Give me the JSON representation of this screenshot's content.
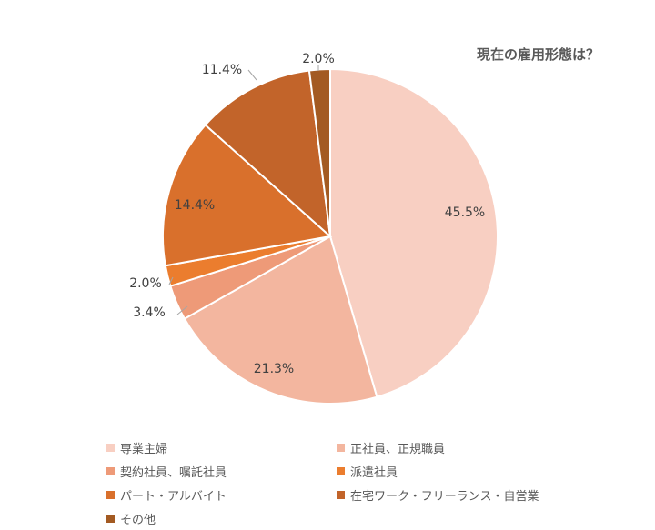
{
  "chart_data": {
    "type": "pie",
    "title": "現在の雇用形態は？",
    "categories": [
      "専業主婦",
      "正社員、正規職員",
      "契約社員、嘱託社員",
      "派遣社員",
      "パート・アルバイト",
      "在宅ワーク・フリーランス・自営業",
      "その他"
    ],
    "values": [
      45.5,
      21.3,
      3.4,
      2.0,
      14.4,
      11.4,
      2.0
    ],
    "data_labels": [
      "45.5%",
      "21.3%",
      "3.4%",
      "2.0%",
      "14.4%",
      "11.4%",
      "2.0%"
    ],
    "colors": [
      "#F8CFC2",
      "#F3B69F",
      "#EE9A78",
      "#EB7D2E",
      "#D9702C",
      "#C2642A",
      "#A35A22"
    ],
    "legend_position": "bottom"
  }
}
